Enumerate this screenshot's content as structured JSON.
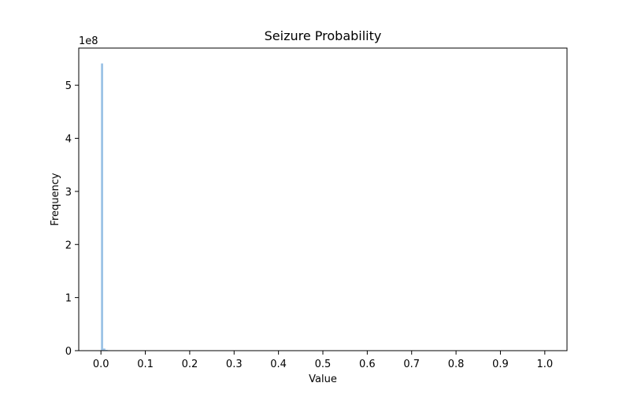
{
  "chart_data": {
    "type": "bar",
    "title": "Seizure Probability",
    "xlabel": "Value",
    "ylabel": "Frequency",
    "y_scale_label": "1e8",
    "xlim": [
      -0.05,
      1.05
    ],
    "ylim": [
      0,
      5.7
    ],
    "x_ticks": [
      0.0,
      0.1,
      0.2,
      0.3,
      0.4,
      0.5,
      0.6,
      0.7,
      0.8,
      0.9,
      1.0
    ],
    "x_tick_labels": [
      "0.0",
      "0.1",
      "0.2",
      "0.3",
      "0.4",
      "0.5",
      "0.6",
      "0.7",
      "0.8",
      "0.9",
      "1.0"
    ],
    "y_ticks": [
      0,
      1,
      2,
      3,
      4,
      5
    ],
    "y_tick_labels": [
      "0",
      "1",
      "2",
      "3",
      "4",
      "5"
    ],
    "bin_width": 0.005,
    "bars": [
      {
        "x": 0.0,
        "value": 5.41
      },
      {
        "x": 0.005,
        "value": 0.04
      },
      {
        "x": 0.01,
        "value": 0.015
      },
      {
        "x": 0.015,
        "value": 0.008
      },
      {
        "x": 0.02,
        "value": 0.005
      },
      {
        "x": 0.025,
        "value": 0.003
      }
    ],
    "bar_color": "#9dc3e6",
    "grid": false,
    "legend": "none"
  }
}
